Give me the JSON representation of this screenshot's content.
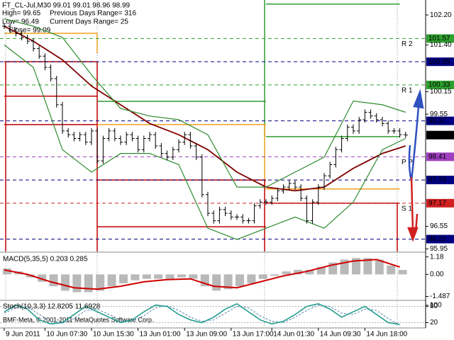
{
  "chart_data": [
    {
      "type": "price",
      "header": [
        "FT_CL-Jul,M30  99.01 99.01 98.96 98.99",
        "High= 99.65",
        "Previous Days Range= 316",
        "Low= 96.49",
        "Current Days Range= 25",
        "Close= 99.09"
      ],
      "x": [
        0,
        1,
        2,
        3,
        4,
        5,
        6,
        7,
        8,
        9,
        10,
        11,
        12,
        13,
        14,
        15,
        16,
        17,
        18,
        19,
        20,
        21,
        22,
        23,
        24,
        25,
        26,
        27,
        28,
        29,
        30,
        31,
        32,
        33,
        34,
        35,
        36,
        37,
        38,
        39,
        40,
        41,
        42,
        43,
        44,
        45,
        46,
        47,
        48,
        49,
        50,
        51,
        52,
        53,
        54,
        55,
        56,
        57,
        58,
        59,
        60,
        61,
        62,
        63,
        64,
        65,
        66,
        67,
        68,
        69
      ],
      "values": [
        101.9,
        101.8,
        101.7,
        101.6,
        101.5,
        101.3,
        101.1,
        100.8,
        100.5,
        99.8,
        99.1,
        99.0,
        98.9,
        99.0,
        98.8,
        99.1,
        98.3,
        98.9,
        99.1,
        98.9,
        98.8,
        99.0,
        98.9,
        98.6,
        98.9,
        99.0,
        98.7,
        98.5,
        98.4,
        98.6,
        98.8,
        99.0,
        98.7,
        98.4,
        97.4,
        96.9,
        96.7,
        97.0,
        96.9,
        96.8,
        96.8,
        96.7,
        96.7,
        97.1,
        97.2,
        97.2,
        97.3,
        97.5,
        97.6,
        97.7,
        97.6,
        97.3,
        96.7,
        97.2,
        97.6,
        97.9,
        98.2,
        98.6,
        98.9,
        99.2,
        99.1,
        99.4,
        99.6,
        99.5,
        99.4,
        99.3,
        99.1,
        99.1,
        99.0,
        98.99
      ],
      "color": "#000000",
      "lines": [
        {
          "color": "#800000",
          "x": [
            0,
            5,
            10,
            15,
            20,
            25,
            30,
            35,
            40,
            45,
            50,
            55,
            60,
            65,
            69
          ],
          "values": [
            101.9,
            101.5,
            101.0,
            100.3,
            99.8,
            99.3,
            99.0,
            98.6,
            98.0,
            97.6,
            97.5,
            97.6,
            98.1,
            98.5,
            98.7
          ]
        },
        {
          "color": "#2e8b2e",
          "x": [
            0,
            5,
            10,
            15,
            20,
            25,
            30,
            35,
            40,
            45,
            50,
            55,
            60,
            65,
            69
          ],
          "values": [
            102.1,
            101.9,
            101.6,
            100.6,
            99.7,
            99.5,
            99.4,
            99.0,
            97.6,
            97.6,
            98.0,
            98.4,
            99.9,
            99.8,
            99.6
          ]
        },
        {
          "color": "#2e8b2e",
          "x": [
            0,
            5,
            10,
            15,
            20,
            25,
            30,
            35,
            40,
            45,
            50,
            55,
            60,
            65,
            69
          ],
          "values": [
            101.4,
            100.8,
            98.6,
            98.0,
            98.5,
            98.5,
            98.2,
            96.5,
            96.2,
            96.5,
            96.8,
            96.5,
            97.2,
            98.6,
            98.9
          ]
        }
      ],
      "levels": [
        {
          "label": "R 2",
          "value": 101.57,
          "color": "#2ea02e"
        },
        {
          "value": 100.95,
          "color": "#000080"
        },
        {
          "label": "R 1",
          "value": 100.33,
          "color": "#2ea02e"
        },
        {
          "value": 99.37,
          "color": "#000080"
        },
        {
          "label": "P P",
          "value": 98.41,
          "color": "#a040c0"
        },
        {
          "value": 97.79,
          "color": "#000080"
        },
        {
          "label": "S 1",
          "value": 97.17,
          "color": "#d02020"
        },
        {
          "value": 96.21,
          "color": "#000080"
        }
      ],
      "last": 98.99,
      "steps": [
        {
          "x0": 0,
          "x1": 16,
          "value": 101.71,
          "color": "#f0a020"
        },
        {
          "x0": 0,
          "x1": 16,
          "value": 100.95,
          "color": "#c00000"
        },
        {
          "x0": 0,
          "x1": 16,
          "value": 100.03,
          "color": "#c00000"
        },
        {
          "x0": 0,
          "x1": 16,
          "value": 99.27,
          "color": "#c00000"
        },
        {
          "x0": 16,
          "x1": 45,
          "value": 99.89,
          "color": "#2e9e2e"
        },
        {
          "x0": 16,
          "x1": 45,
          "value": 99.27,
          "color": "#f0a020"
        },
        {
          "x0": 16,
          "x1": 45,
          "value": 97.79,
          "color": "#c00000"
        },
        {
          "x0": 16,
          "x1": 45,
          "value": 96.54,
          "color": "#c00000"
        },
        {
          "x0": 45,
          "x1": 68,
          "value": 102.49,
          "color": "#2e9e2e"
        },
        {
          "x0": 45,
          "x1": 68,
          "value": 98.95,
          "color": "#2e9e2e"
        },
        {
          "x0": 45,
          "x1": 68,
          "value": 97.55,
          "color": "#f0a020"
        },
        {
          "x0": 45,
          "x1": 68,
          "value": 97.17,
          "color": "#c00000"
        }
      ],
      "ylim": [
        95.88,
        102.6
      ],
      "yticks": [
        {
          "value": 102.2,
          "label": "102.20"
        },
        {
          "value": 101.4,
          "label": "101.40"
        },
        100.15,
        99.55,
        96.55,
        95.95
      ],
      "xlim": [
        -0.73,
        72.44
      ],
      "xticks": [
        {
          "value": 0,
          "label": "9 Jun 2011"
        },
        {
          "value": 7,
          "label": "10 Jun 07:30"
        },
        {
          "value": 15,
          "label": "10 Jun 15:30"
        },
        {
          "value": 23,
          "label": "13 Jun 01:00"
        },
        {
          "value": 31,
          "label": "13 Jun 09:00"
        },
        {
          "value": 39,
          "label": "13 Jun 17:00"
        },
        {
          "value": 46,
          "label": "14 Jun 01:30"
        },
        {
          "value": 54,
          "label": "14 Jun 09:30"
        },
        {
          "value": 62,
          "label": "14 Jun 18:00"
        }
      ]
    },
    {
      "type": "macd",
      "title": "MACD(5,35,5) 0.203 0.285",
      "x": [
        0,
        2,
        4,
        6,
        8,
        10,
        12,
        14,
        16,
        18,
        20,
        22,
        24,
        26,
        28,
        30,
        32,
        34,
        36,
        38,
        40,
        42,
        44,
        46,
        48,
        50,
        52,
        54,
        56,
        58,
        60,
        62,
        64,
        66,
        68
      ],
      "values": [
        0.4,
        0.2,
        -0.2,
        -0.5,
        -0.8,
        -1.1,
        -1.2,
        -1.2,
        -1.1,
        -0.8,
        -0.6,
        -0.4,
        -0.3,
        -0.3,
        -0.3,
        -0.2,
        -0.3,
        -0.8,
        -1.1,
        -1.0,
        -0.8,
        -0.6,
        -0.3,
        -0.1,
        0.2,
        0.3,
        0.3,
        0.5,
        0.8,
        1.0,
        1.1,
        1.1,
        1.0,
        0.6,
        0.3
      ],
      "color": "#a8a8a8",
      "signal": {
        "color": "#d00000",
        "x": [
          0,
          4,
          8,
          12,
          16,
          20,
          24,
          28,
          32,
          36,
          40,
          44,
          48,
          52,
          56,
          60,
          64,
          68
        ],
        "values": [
          0.3,
          0.0,
          -0.5,
          -0.9,
          -1.0,
          -0.8,
          -0.5,
          -0.35,
          -0.3,
          -0.8,
          -0.9,
          -0.5,
          -0.1,
          0.2,
          0.6,
          0.9,
          1.0,
          0.5
        ]
      },
      "ylim": [
        -1.7,
        1.45
      ],
      "yticks": [
        1.18,
        {
          "value": 0,
          "label": "0.00"
        },
        -1.487
      ]
    },
    {
      "type": "stoch",
      "title": "Stoch(10,3,3) 12.8205 11.6928",
      "x": [
        0,
        2,
        4,
        6,
        8,
        10,
        12,
        14,
        16,
        18,
        20,
        22,
        24,
        26,
        28,
        30,
        32,
        34,
        36,
        38,
        40,
        42,
        44,
        46,
        48,
        50,
        52,
        54,
        56,
        58,
        60,
        62,
        64,
        66,
        68
      ],
      "values": [
        60,
        85,
        70,
        30,
        15,
        20,
        50,
        80,
        60,
        40,
        20,
        30,
        60,
        85,
        80,
        50,
        30,
        20,
        40,
        70,
        90,
        60,
        30,
        15,
        25,
        50,
        80,
        90,
        70,
        40,
        60,
        80,
        50,
        20,
        13
      ],
      "color": "#1a9a8a",
      "signal": {
        "color": "#5a8ab0",
        "values": [
          55,
          75,
          80,
          50,
          25,
          18,
          35,
          65,
          70,
          50,
          30,
          25,
          45,
          75,
          82,
          65,
          40,
          25,
          30,
          55,
          80,
          75,
          45,
          25,
          20,
          40,
          65,
          85,
          80,
          55,
          50,
          70,
          65,
          35,
          12
        ]
      },
      "ylim": [
        0,
        100
      ],
      "yticks": [
        100,
        80,
        20
      ]
    }
  ],
  "footer": "BMF-Meta, © 2001-2011 MetaQuotes Software Corp."
}
